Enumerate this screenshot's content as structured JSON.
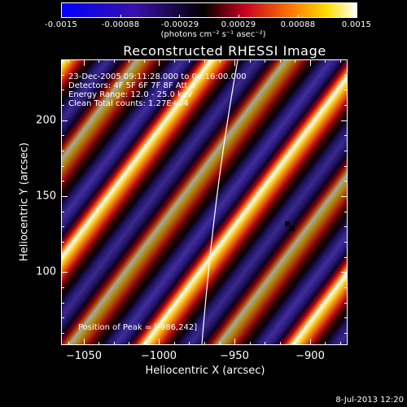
{
  "colorbar": {
    "labels": [
      "-0.0015",
      "-0.00088",
      "-0.00029",
      "0.00029",
      "0.00088",
      "0.0015"
    ],
    "unit": "(photons cm⁻² s⁻¹ asec⁻²)",
    "min": -0.0015,
    "max": 0.0015
  },
  "chart_data": {
    "type": "heatmap",
    "title": "Reconstructed RHESSI Image",
    "xlabel": "Heliocentric X (arcsec)",
    "ylabel": "Heliocentric Y (arcsec)",
    "xlim": [
      -1065,
      -875
    ],
    "ylim": [
      52,
      240
    ],
    "x_ticks": [
      -1050,
      -1000,
      -950,
      -900
    ],
    "y_ticks": [
      100,
      150,
      200
    ],
    "info_lines": [
      "23-Dec-2005 09:11:28.000 to 09:16:00.000",
      "Detectors: 4F 5F 6F 7F 8F  Att 0",
      "Energy Range: 12.0 - 25.0 keV",
      "Clean     Total counts: 1.27E+04"
    ],
    "peak_text": "Position of Peak = [-986,242]",
    "peak_position": [
      -986,
      242
    ],
    "colormap": "blue-black-red-yellow-white",
    "pattern": "diagonal fringe stripes running lower-left to upper-right"
  },
  "footer": {
    "date": "8-Jul-2013 12:20"
  }
}
